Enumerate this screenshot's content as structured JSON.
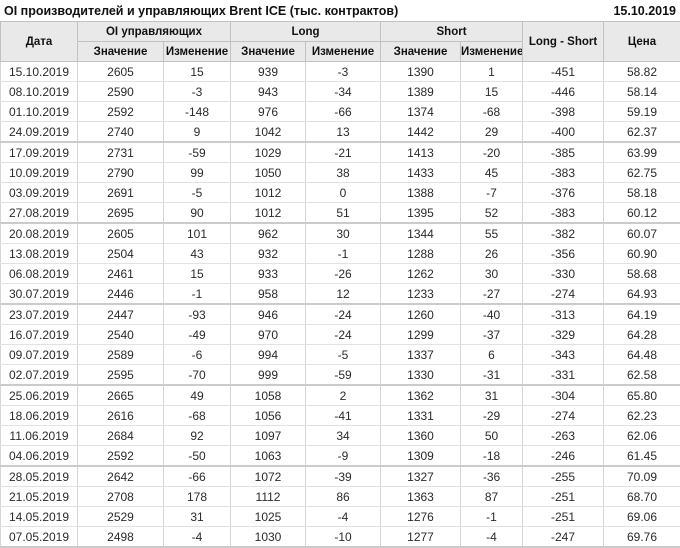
{
  "header": {
    "title": "OI производителей и управляющих Brent ICE (тыс. контрактов)",
    "date": "15.10.2019"
  },
  "table": {
    "columns": {
      "date": "Дата",
      "oi_group": "OI управляющих",
      "long_group": "Long",
      "short_group": "Short",
      "value": "Значение",
      "change": "Изменение",
      "long_short": "Long - Short",
      "price": "Цена"
    },
    "rows": [
      {
        "date": "15.10.2019",
        "oi": "2605",
        "oi_chg": "15",
        "long": "939",
        "long_chg": "-3",
        "short": "1390",
        "short_chg": "1",
        "long_short": "-451",
        "price": "58.82"
      },
      {
        "date": "08.10.2019",
        "oi": "2590",
        "oi_chg": "-3",
        "long": "943",
        "long_chg": "-34",
        "short": "1389",
        "short_chg": "15",
        "long_short": "-446",
        "price": "58.14"
      },
      {
        "date": "01.10.2019",
        "oi": "2592",
        "oi_chg": "-148",
        "long": "976",
        "long_chg": "-66",
        "short": "1374",
        "short_chg": "-68",
        "long_short": "-398",
        "price": "59.19"
      },
      {
        "date": "24.09.2019",
        "oi": "2740",
        "oi_chg": "9",
        "long": "1042",
        "long_chg": "13",
        "short": "1442",
        "short_chg": "29",
        "long_short": "-400",
        "price": "62.37"
      },
      {
        "date": "17.09.2019",
        "oi": "2731",
        "oi_chg": "-59",
        "long": "1029",
        "long_chg": "-21",
        "short": "1413",
        "short_chg": "-20",
        "long_short": "-385",
        "price": "63.99"
      },
      {
        "date": "10.09.2019",
        "oi": "2790",
        "oi_chg": "99",
        "long": "1050",
        "long_chg": "38",
        "short": "1433",
        "short_chg": "45",
        "long_short": "-383",
        "price": "62.75"
      },
      {
        "date": "03.09.2019",
        "oi": "2691",
        "oi_chg": "-5",
        "long": "1012",
        "long_chg": "0",
        "short": "1388",
        "short_chg": "-7",
        "long_short": "-376",
        "price": "58.18"
      },
      {
        "date": "27.08.2019",
        "oi": "2695",
        "oi_chg": "90",
        "long": "1012",
        "long_chg": "51",
        "short": "1395",
        "short_chg": "52",
        "long_short": "-383",
        "price": "60.12"
      },
      {
        "date": "20.08.2019",
        "oi": "2605",
        "oi_chg": "101",
        "long": "962",
        "long_chg": "30",
        "short": "1344",
        "short_chg": "55",
        "long_short": "-382",
        "price": "60.07"
      },
      {
        "date": "13.08.2019",
        "oi": "2504",
        "oi_chg": "43",
        "long": "932",
        "long_chg": "-1",
        "short": "1288",
        "short_chg": "26",
        "long_short": "-356",
        "price": "60.90"
      },
      {
        "date": "06.08.2019",
        "oi": "2461",
        "oi_chg": "15",
        "long": "933",
        "long_chg": "-26",
        "short": "1262",
        "short_chg": "30",
        "long_short": "-330",
        "price": "58.68"
      },
      {
        "date": "30.07.2019",
        "oi": "2446",
        "oi_chg": "-1",
        "long": "958",
        "long_chg": "12",
        "short": "1233",
        "short_chg": "-27",
        "long_short": "-274",
        "price": "64.93"
      },
      {
        "date": "23.07.2019",
        "oi": "2447",
        "oi_chg": "-93",
        "long": "946",
        "long_chg": "-24",
        "short": "1260",
        "short_chg": "-40",
        "long_short": "-313",
        "price": "64.19"
      },
      {
        "date": "16.07.2019",
        "oi": "2540",
        "oi_chg": "-49",
        "long": "970",
        "long_chg": "-24",
        "short": "1299",
        "short_chg": "-37",
        "long_short": "-329",
        "price": "64.28"
      },
      {
        "date": "09.07.2019",
        "oi": "2589",
        "oi_chg": "-6",
        "long": "994",
        "long_chg": "-5",
        "short": "1337",
        "short_chg": "6",
        "long_short": "-343",
        "price": "64.48"
      },
      {
        "date": "02.07.2019",
        "oi": "2595",
        "oi_chg": "-70",
        "long": "999",
        "long_chg": "-59",
        "short": "1330",
        "short_chg": "-31",
        "long_short": "-331",
        "price": "62.58"
      },
      {
        "date": "25.06.2019",
        "oi": "2665",
        "oi_chg": "49",
        "long": "1058",
        "long_chg": "2",
        "short": "1362",
        "short_chg": "31",
        "long_short": "-304",
        "price": "65.80"
      },
      {
        "date": "18.06.2019",
        "oi": "2616",
        "oi_chg": "-68",
        "long": "1056",
        "long_chg": "-41",
        "short": "1331",
        "short_chg": "-29",
        "long_short": "-274",
        "price": "62.23"
      },
      {
        "date": "11.06.2019",
        "oi": "2684",
        "oi_chg": "92",
        "long": "1097",
        "long_chg": "34",
        "short": "1360",
        "short_chg": "50",
        "long_short": "-263",
        "price": "62.06"
      },
      {
        "date": "04.06.2019",
        "oi": "2592",
        "oi_chg": "-50",
        "long": "1063",
        "long_chg": "-9",
        "short": "1309",
        "short_chg": "-18",
        "long_short": "-246",
        "price": "61.45"
      },
      {
        "date": "28.05.2019",
        "oi": "2642",
        "oi_chg": "-66",
        "long": "1072",
        "long_chg": "-39",
        "short": "1327",
        "short_chg": "-36",
        "long_short": "-255",
        "price": "70.09"
      },
      {
        "date": "21.05.2019",
        "oi": "2708",
        "oi_chg": "178",
        "long": "1112",
        "long_chg": "86",
        "short": "1363",
        "short_chg": "87",
        "long_short": "-251",
        "price": "68.70"
      },
      {
        "date": "14.05.2019",
        "oi": "2529",
        "oi_chg": "31",
        "long": "1025",
        "long_chg": "-4",
        "short": "1276",
        "short_chg": "-1",
        "long_short": "-251",
        "price": "69.06"
      },
      {
        "date": "07.05.2019",
        "oi": "2498",
        "oi_chg": "-4",
        "long": "1030",
        "long_chg": "-10",
        "short": "1277",
        "short_chg": "-4",
        "long_short": "-247",
        "price": "69.76"
      }
    ]
  },
  "colors": {
    "positive": "#169416",
    "negative": "#dd3333",
    "header_bg": "#e9e9e9"
  }
}
